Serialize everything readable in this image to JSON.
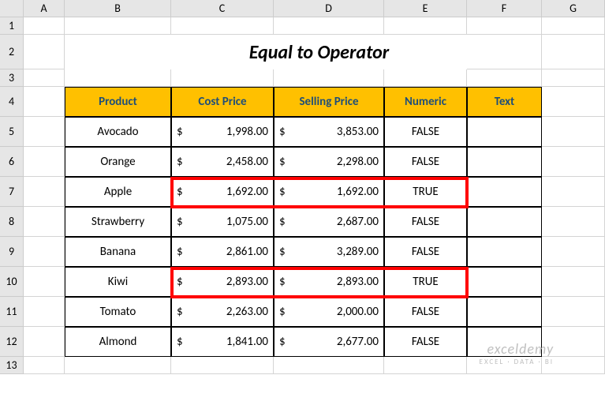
{
  "columns": [
    "A",
    "B",
    "C",
    "D",
    "E",
    "F",
    "G"
  ],
  "title": "Equal to Operator",
  "headers": {
    "product": "Product",
    "cost": "Cost Price",
    "selling": "Selling Price",
    "numeric": "Numeric",
    "text": "Text"
  },
  "rows": [
    {
      "product": "Avocado",
      "cost": "1,998.00",
      "selling": "3,853.00",
      "numeric": "FALSE"
    },
    {
      "product": "Orange",
      "cost": "2,458.00",
      "selling": "2,298.00",
      "numeric": "FALSE"
    },
    {
      "product": "Apple",
      "cost": "1,692.00",
      "selling": "1,692.00",
      "numeric": "TRUE"
    },
    {
      "product": "Strawberry",
      "cost": "1,075.00",
      "selling": "2,687.00",
      "numeric": "FALSE"
    },
    {
      "product": "Banana",
      "cost": "2,861.00",
      "selling": "3,289.00",
      "numeric": "FALSE"
    },
    {
      "product": "Kiwi",
      "cost": "2,893.00",
      "selling": "2,893.00",
      "numeric": "TRUE"
    },
    {
      "product": "Tomato",
      "cost": "2,263.00",
      "selling": "2,000.00",
      "numeric": "FALSE"
    },
    {
      "product": "Almond",
      "cost": "1,841.00",
      "selling": "2,677.00",
      "numeric": "FALSE"
    }
  ],
  "currency": "$",
  "colors": {
    "header_bg": "#ffc000",
    "header_text": "#1f4e79",
    "grid_bg": "#e6e6e6",
    "highlight": "#ff0000"
  },
  "watermark": {
    "line1": "exceldemy",
    "line2": "EXCEL · DATA · BI"
  }
}
